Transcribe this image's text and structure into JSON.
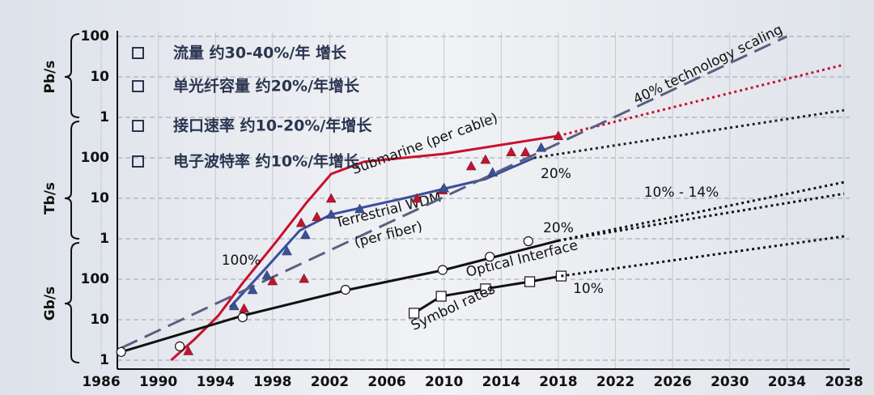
{
  "chart_data": {
    "type": "line",
    "log_y": true,
    "grid": true,
    "notes": [
      "流量 约30-40%/年 增长",
      "单光纤容量 约20%/年增长",
      "接口速率 约10-20%/年增长",
      "电子波特率 约10%/年增长"
    ],
    "y_units": [
      "Gb/s",
      "Tb/s",
      "Pb/s"
    ],
    "xlim": [
      1986,
      2038
    ],
    "xticks": [
      1986,
      1990,
      1994,
      1998,
      2002,
      2006,
      2010,
      2014,
      2018,
      2022,
      2026,
      2030,
      2034,
      2038
    ],
    "ylim": [
      1,
      100000000
    ],
    "yticks": [
      1,
      10,
      100,
      {
        "value": 1000,
        "label": "1"
      },
      {
        "value": 10000,
        "label": "10"
      },
      {
        "value": 100000,
        "label": "100"
      },
      {
        "value": 1000000,
        "label": "1"
      },
      {
        "value": 10000000,
        "label": "10"
      },
      {
        "value": 100000000,
        "label": "100"
      }
    ],
    "series": [
      {
        "name": "Submarine (per cable)",
        "color": "#c8102e",
        "dash": "solid",
        "x": [
          1990.9,
          1992.5,
          1994.2,
          1995.9,
          1998.2,
          2000.4,
          2002.1,
          2004.4,
          2010,
          2018
        ],
        "values": [
          1,
          3.2,
          12.6,
          80,
          800,
          8000,
          40000,
          80000,
          125000,
          350000
        ]
      },
      {
        "color": "#c8102e",
        "dash": "dotted",
        "x": [
          2018,
          2038
        ],
        "values": [
          350000,
          20000000
        ]
      },
      {
        "name": "Terrestrial WDM",
        "color": "#3a4f9c",
        "dash": "solid",
        "x": [
          1995,
          1997.6,
          1999.9,
          2002.1,
          2007.2,
          2012.9,
          2016.3
        ],
        "values": [
          20,
          200,
          1600,
          4000,
          10000,
          30000,
          100000
        ]
      },
      {
        "color": "#222222",
        "dash": "dotted",
        "x": [
          2016.3,
          2038
        ],
        "values": [
          100000,
          1500000
        ]
      },
      {
        "name": "Optical Interface",
        "color": "#111111",
        "dash": "solid",
        "x": [
          1987.4,
          1995.9,
          2003.3,
          2010,
          2018
        ],
        "values": [
          1.6,
          12.6,
          55,
          170,
          900
        ]
      },
      {
        "color": "#111111",
        "dash": "dotted",
        "x": [
          2018,
          2038
        ],
        "values": [
          900,
          25000
        ]
      },
      {
        "color": "#111111",
        "dash": "dotted",
        "x": [
          2018,
          2038
        ],
        "values": [
          900,
          13000
        ]
      },
      {
        "name": "Symbol rates",
        "color": "#111111",
        "dash": "solid",
        "marker": "square",
        "x": [
          2007.9,
          2009.8,
          2012.9,
          2016,
          2018.2
        ],
        "values": [
          14.5,
          38,
          58,
          87,
          120
        ]
      },
      {
        "color": "#111111",
        "dash": "dotted",
        "x": [
          2018.2,
          2038
        ],
        "values": [
          120,
          1150
        ]
      },
      {
        "color": "#5a5f80",
        "dash": "dashed",
        "x": [
          1987.4,
          2034
        ],
        "values": [
          2,
          100000000
        ]
      },
      {
        "color": "#c8102e",
        "dash": "none",
        "marker": "triangle",
        "x": [
          1992.1,
          1996,
          1998,
          2000.2,
          2000,
          2001.1,
          2002.1,
          2008.1,
          2009.9,
          2011.9,
          2012.9,
          2014.7,
          2015.7,
          2018
        ],
        "values": [
          1.7,
          19,
          91,
          104,
          2500,
          3500,
          10000,
          10000,
          16000,
          63000,
          91000,
          140000,
          140000,
          350000
        ]
      },
      {
        "color": "#3a4f9c",
        "dash": "none",
        "marker": "triangle",
        "x": [
          1995.3,
          1996.6,
          1997.6,
          1999,
          2000.3,
          2002.1,
          2004.1,
          2010,
          2013.4,
          2016.8
        ],
        "values": [
          22,
          55,
          126,
          500,
          1260,
          4000,
          5500,
          18000,
          44000,
          180000
        ]
      },
      {
        "color": "#111111",
        "dash": "none",
        "marker": "circle",
        "x": [
          1987.4,
          1991.5,
          1995.9,
          2003.1,
          2009.9,
          2013.2,
          2015.9
        ],
        "values": [
          1.6,
          2.2,
          11.5,
          55,
          170,
          360,
          870
        ]
      }
    ],
    "annotations": [
      "100%",
      "20%",
      "20%",
      "10% - 14%",
      "10%",
      "40% technology scaling",
      "(per fiber)"
    ]
  }
}
